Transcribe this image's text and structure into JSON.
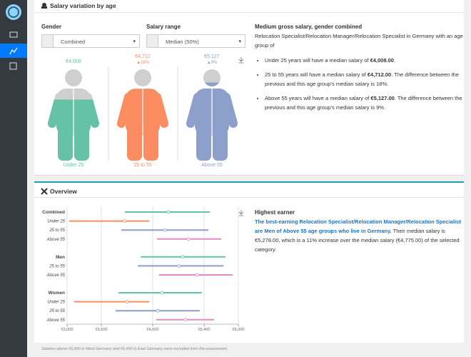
{
  "age_panel": {
    "title": "Salary variation by age",
    "gender_label": "Gender",
    "gender_value": "Combined",
    "range_label": "Salary range",
    "range_value": "Median (50%)",
    "summary_title": "Medium gross salary, gender combined",
    "summary_intro": "Relocation Specialist/Relocation Manager/Relocation Specialist in Germany with an age group of",
    "bullets": [
      {
        "before": "Under 25 years will have a median salary of ",
        "amount": "€4,008.00",
        "after": "."
      },
      {
        "before": "25 to 55 years will have a median salary of ",
        "amount": "€4,712.00",
        "after": ". The difference between the previous and this age group's median salary is 18%."
      },
      {
        "before": "Above 55 years will have a median salary of ",
        "amount": "€5,127.00",
        "after": ". The difference between the previous and this age group's median salary is 9%."
      }
    ]
  },
  "overview": {
    "title": "Overview",
    "highest_title": "Highest earner",
    "highlight": "The best-earning Relocation Specialist/Relocation Manager/Relocation Specialist are Men of Above 55 age groups who live in Germany.",
    "detail": " Their median salary is €5,278.00, which is a 11% increase over the median salary (€4,775.00) of the selected category."
  },
  "footnote": "Salaries above €6,900 in West Germany and €6,450 in East Germany were excluded from the assessment.",
  "chart_data": [
    {
      "type": "figure",
      "categories": [
        "Under 25",
        "25 to 55",
        "Above 55"
      ],
      "values": [
        4008,
        4712,
        5127
      ],
      "value_labels": [
        "€4,008",
        "€4,712",
        "€5,127"
      ],
      "change_labels": [
        null,
        "▲18%",
        "▲9%"
      ],
      "colors": [
        "#66c2a5",
        "#fc8d62",
        "#8da0cb"
      ],
      "ylim": [
        0,
        6000
      ]
    },
    {
      "type": "range",
      "xlim": [
        3000,
        6000
      ],
      "xticks": [
        {
          "value": 3000,
          "label": "€3,000"
        },
        {
          "value": 3600,
          "label": "€3,600"
        },
        {
          "value": 4500,
          "label": "€4,500"
        },
        {
          "value": 5400,
          "label": "€5,400"
        },
        {
          "value": 6000,
          "label": "€6,000"
        }
      ],
      "grid": true,
      "groups": [
        {
          "name": "Combined",
          "low": 4010,
          "median": 4775,
          "high": 5500,
          "color": "#66c2a5",
          "rows": [
            {
              "name": "Under 25",
              "low": 3040,
              "median": 4008,
              "high": 4440,
              "color": "#fc8d62"
            },
            {
              "name": "25 to 55",
              "low": 3950,
              "median": 4712,
              "high": 5475,
              "color": "#8da0cb"
            },
            {
              "name": "Above 55",
              "low": 4575,
              "median": 5127,
              "high": 5700,
              "color": "#e78ac3"
            }
          ]
        },
        {
          "name": "Men",
          "low": 4290,
          "median": 5025,
          "high": 5775,
          "color": "#66c2a5",
          "rows": [
            {
              "name": "25 to 55",
              "low": 4240,
              "median": 4960,
              "high": 5740,
              "color": "#8da0cb"
            },
            {
              "name": "Above 55",
              "low": 4610,
              "median": 5278,
              "high": 5900,
              "color": "#e78ac3"
            }
          ]
        },
        {
          "name": "Women",
          "low": 3900,
          "median": 4660,
          "high": 5360,
          "color": "#66c2a5",
          "rows": [
            {
              "name": "Under 25",
              "low": 3125,
              "median": 4050,
              "high": 4440,
              "color": "#fc8d62"
            },
            {
              "name": "25 to 55",
              "low": 3850,
              "median": 4590,
              "high": 5325,
              "color": "#8da0cb"
            },
            {
              "name": "Above 55",
              "low": 4560,
              "median": 5075,
              "high": 5575,
              "color": "#e78ac3"
            }
          ]
        }
      ]
    }
  ]
}
